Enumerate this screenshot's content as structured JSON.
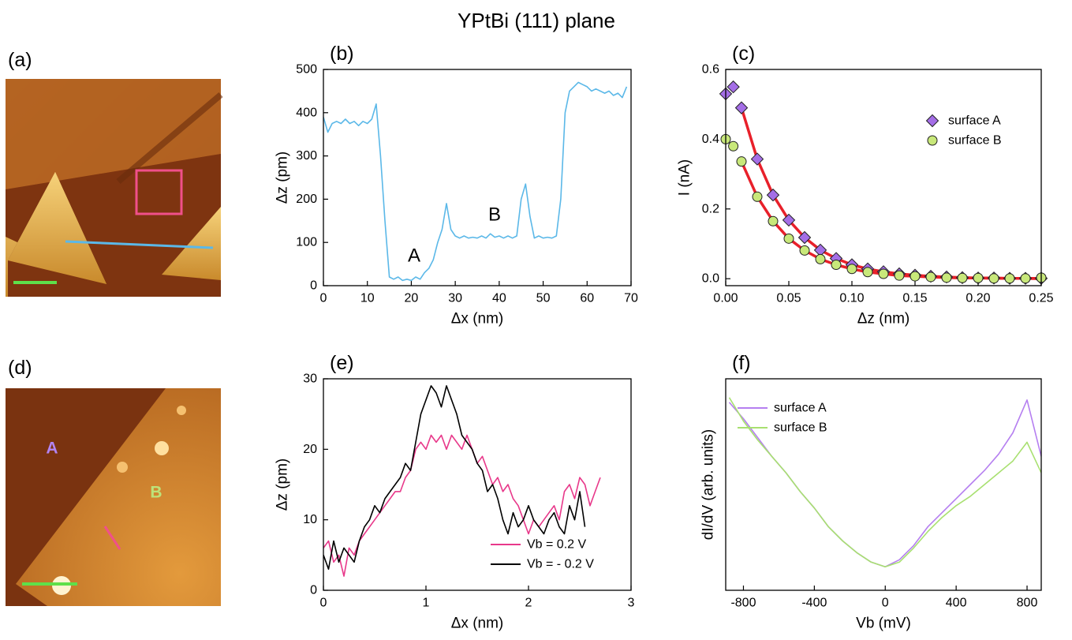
{
  "title": "YPtBi (111) plane",
  "images": [
    {
      "panel": "(a)"
    },
    {
      "panel": "(d)",
      "labels": [
        "A",
        "B"
      ]
    }
  ],
  "chart_data": [
    {
      "type": "line",
      "panel": "(b)",
      "xlabel": "Δx (nm)",
      "ylabel": "Δz (pm)",
      "xlim": [
        0,
        70
      ],
      "ylim": [
        0,
        500
      ],
      "xticks": [
        0,
        10,
        20,
        30,
        40,
        50,
        60,
        70
      ],
      "yticks": [
        0,
        100,
        200,
        300,
        400,
        500
      ],
      "annotations": [
        "A",
        "B"
      ],
      "x": [
        0,
        1,
        2,
        3,
        4,
        5,
        6,
        7,
        8,
        9,
        10,
        11,
        12,
        13,
        14,
        15,
        16,
        17,
        18,
        19,
        20,
        21,
        22,
        23,
        24,
        25,
        26,
        27,
        28,
        29,
        30,
        31,
        32,
        33,
        34,
        35,
        36,
        37,
        38,
        39,
        40,
        41,
        42,
        43,
        44,
        45,
        46,
        47,
        48,
        49,
        50,
        51,
        52,
        53,
        54,
        55,
        56,
        57,
        58,
        59,
        60,
        61,
        62,
        63,
        64,
        65,
        66,
        67,
        68,
        69
      ],
      "series": [
        {
          "color": "#5bb8e8",
          "style": "line",
          "values": [
            390,
            355,
            375,
            380,
            375,
            385,
            375,
            380,
            370,
            380,
            375,
            385,
            420,
            300,
            150,
            20,
            15,
            20,
            12,
            15,
            12,
            20,
            15,
            30,
            40,
            60,
            100,
            130,
            190,
            130,
            115,
            110,
            115,
            110,
            112,
            110,
            115,
            110,
            120,
            112,
            115,
            110,
            115,
            110,
            115,
            200,
            235,
            160,
            110,
            115,
            110,
            112,
            110,
            115,
            200,
            400,
            450,
            460,
            470,
            465,
            460,
            450,
            455,
            450,
            445,
            450,
            440,
            445,
            435,
            460
          ]
        }
      ]
    },
    {
      "type": "scatter",
      "panel": "(c)",
      "xlabel": "Δz (nm)",
      "ylabel": "I (nA)",
      "xlim": [
        0,
        0.25
      ],
      "ylim": [
        -0.02,
        0.6
      ],
      "xticks": [
        {
          "value": 0,
          "label": "0.00"
        },
        {
          "value": 0.05,
          "label": "0.05"
        },
        {
          "value": 0.1,
          "label": "0.10"
        },
        0.15,
        {
          "value": 0.2,
          "label": "0.20"
        },
        0.25
      ],
      "yticks": [
        {
          "value": 0,
          "label": "0.0"
        },
        0.2,
        0.4,
        0.6
      ],
      "legend": "top-right",
      "series": [
        {
          "name": "surface A",
          "color": "#a46ee6",
          "style": "marker",
          "marker": "diamond",
          "x": [
            0,
            0.006,
            0.0125,
            0.025,
            0.0375,
            0.05,
            0.0625,
            0.075,
            0.0875,
            0.1,
            0.1125,
            0.125,
            0.1375,
            0.15,
            0.1625,
            0.175,
            0.1875,
            0.2,
            0.2125,
            0.225,
            0.2375,
            0.25
          ],
          "values": [
            0.53,
            0.55,
            0.49,
            0.343,
            0.24,
            0.168,
            0.118,
            0.082,
            0.058,
            0.04,
            0.028,
            0.02,
            0.014,
            0.01,
            0.007,
            0.005,
            0.003,
            0.002,
            0.002,
            0.001,
            0.001,
            0.001
          ]
        },
        {
          "name": "surface B",
          "color": "#c8e87a",
          "style": "marker",
          "marker": "circle",
          "x": [
            0,
            0.006,
            0.0125,
            0.025,
            0.0375,
            0.05,
            0.0625,
            0.075,
            0.0875,
            0.1,
            0.1125,
            0.125,
            0.1375,
            0.15,
            0.1625,
            0.175,
            0.1875,
            0.2,
            0.2125,
            0.225,
            0.2375,
            0.25
          ],
          "values": [
            0.4,
            0.38,
            0.336,
            0.235,
            0.165,
            0.115,
            0.081,
            0.056,
            0.04,
            0.028,
            0.019,
            0.014,
            0.009,
            0.007,
            0.005,
            0.003,
            0.002,
            0.002,
            0.001,
            0.001,
            0.001,
            0.003
          ]
        },
        {
          "color": "#e8202a",
          "style": "line",
          "x": [
            0.0125,
            0.025,
            0.0375,
            0.05,
            0.0625,
            0.075,
            0.0875,
            0.1,
            0.1125,
            0.125,
            0.1375,
            0.15,
            0.1625,
            0.175,
            0.1875,
            0.2,
            0.2125,
            0.225,
            0.2375,
            0.25
          ],
          "values": [
            0.49,
            0.343,
            0.24,
            0.168,
            0.118,
            0.082,
            0.058,
            0.04,
            0.028,
            0.02,
            0.014,
            0.01,
            0.007,
            0.005,
            0.003,
            0.002,
            0.002,
            0.001,
            0.001,
            0.001
          ]
        },
        {
          "color": "#e8202a",
          "style": "line",
          "x": [
            0.0125,
            0.025,
            0.0375,
            0.05,
            0.0625,
            0.075,
            0.0875,
            0.1,
            0.1125,
            0.125,
            0.1375,
            0.15,
            0.1625,
            0.175,
            0.1875,
            0.2,
            0.2125,
            0.225,
            0.2375,
            0.25
          ],
          "values": [
            0.336,
            0.235,
            0.165,
            0.115,
            0.081,
            0.056,
            0.04,
            0.028,
            0.019,
            0.014,
            0.009,
            0.007,
            0.005,
            0.003,
            0.002,
            0.002,
            0.001,
            0.001,
            0.001,
            0.0
          ]
        }
      ]
    },
    {
      "type": "line",
      "panel": "(e)",
      "xlabel": "Δx (nm)",
      "ylabel": "Δz (pm)",
      "xlim": [
        0,
        3
      ],
      "ylim": [
        0,
        30
      ],
      "xticks": [
        0,
        1,
        2,
        3
      ],
      "yticks": [
        0,
        10,
        20,
        30
      ],
      "legend": "bottom-right",
      "x": [
        0,
        0.05,
        0.1,
        0.15,
        0.2,
        0.25,
        0.3,
        0.35,
        0.4,
        0.45,
        0.5,
        0.55,
        0.6,
        0.65,
        0.7,
        0.75,
        0.8,
        0.85,
        0.9,
        0.95,
        1,
        1.05,
        1.1,
        1.15,
        1.2,
        1.25,
        1.3,
        1.35,
        1.4,
        1.45,
        1.5,
        1.55,
        1.6,
        1.65,
        1.7,
        1.75,
        1.8,
        1.85,
        1.9,
        1.95,
        2,
        2.05,
        2.1,
        2.15,
        2.2,
        2.25,
        2.3,
        2.35,
        2.4,
        2.45,
        2.5,
        2.55,
        2.6,
        2.65,
        2.7
      ],
      "series": [
        {
          "name": "Vb = 0.2 V",
          "color": "#e8388a",
          "style": "line",
          "values": [
            6,
            7,
            4,
            5,
            2,
            6,
            5,
            7,
            8,
            9,
            10,
            11,
            12,
            13,
            14,
            14,
            16,
            17,
            20,
            21,
            20,
            22,
            21,
            22,
            20,
            22,
            21,
            20,
            22,
            20,
            18,
            19,
            17,
            15,
            16,
            14,
            15,
            13,
            12,
            10,
            8,
            10,
            9,
            10,
            11,
            12,
            10,
            14,
            15,
            13,
            16,
            15,
            12,
            14,
            16
          ]
        },
        {
          "name": "Vb = - 0.2 V",
          "color": "#000000",
          "style": "line",
          "values": [
            5,
            3,
            7,
            4,
            6,
            5,
            4,
            7,
            9,
            10,
            12,
            11,
            13,
            14,
            15,
            16,
            18,
            17,
            21,
            25,
            27,
            29,
            28,
            26,
            29,
            27,
            25,
            22,
            21,
            20,
            18,
            17,
            14,
            15,
            13,
            10,
            8,
            11,
            9,
            10,
            12,
            10,
            9,
            8,
            10,
            11,
            9,
            8,
            12,
            10,
            14,
            9,
            null,
            null,
            null
          ]
        }
      ]
    },
    {
      "type": "line",
      "panel": "(f)",
      "xlabel": "Vb (mV)",
      "ylabel": "dI/dV (arb. units)",
      "xlim": [
        -900,
        880
      ],
      "ylim": [
        0.05,
        0.95
      ],
      "xticks": [
        -800,
        -400,
        0,
        400,
        800
      ],
      "legend": "top-left",
      "x": [
        -880,
        -800,
        -720,
        -640,
        -560,
        -480,
        -400,
        -320,
        -240,
        -160,
        -80,
        0,
        80,
        160,
        240,
        320,
        400,
        480,
        560,
        640,
        720,
        800,
        880
      ],
      "series": [
        {
          "name": "surface A",
          "color": "#b57ff0",
          "style": "line",
          "values": [
            0.85,
            0.78,
            0.7,
            0.62,
            0.55,
            0.47,
            0.4,
            0.32,
            0.26,
            0.21,
            0.17,
            0.15,
            0.18,
            0.24,
            0.32,
            0.38,
            0.44,
            0.5,
            0.56,
            0.63,
            0.72,
            0.86,
            0.62
          ]
        },
        {
          "name": "surface B",
          "color": "#a8e070",
          "style": "line",
          "values": [
            0.87,
            0.77,
            0.69,
            0.62,
            0.55,
            0.47,
            0.4,
            0.32,
            0.26,
            0.21,
            0.17,
            0.15,
            0.17,
            0.23,
            0.3,
            0.36,
            0.41,
            0.45,
            0.5,
            0.55,
            0.6,
            0.68,
            0.55
          ]
        }
      ]
    }
  ]
}
